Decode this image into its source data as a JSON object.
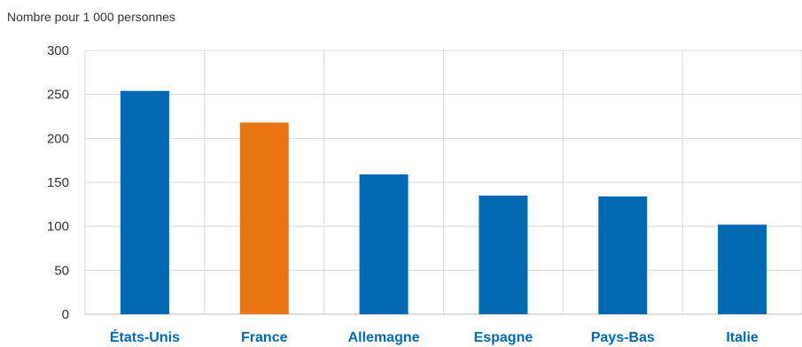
{
  "chart_data": {
    "type": "bar",
    "ylabel": "Nombre pour 1 000 personnes",
    "categories": [
      "États-Unis",
      "France",
      "Allemagne",
      "Espagne",
      "Pays-Bas",
      "Italie"
    ],
    "values": [
      254,
      218,
      159,
      135,
      134,
      102
    ],
    "highlight_category": "France",
    "ylim": [
      0,
      300
    ],
    "yticks": [
      0,
      50,
      100,
      150,
      200,
      250,
      300
    ],
    "grid": true,
    "colors": {
      "bar": "#0069B4",
      "highlight": "#E87511",
      "category_label": "#0069B4",
      "grid": "#D9D9D9",
      "axis": "#BFBFBF"
    }
  }
}
